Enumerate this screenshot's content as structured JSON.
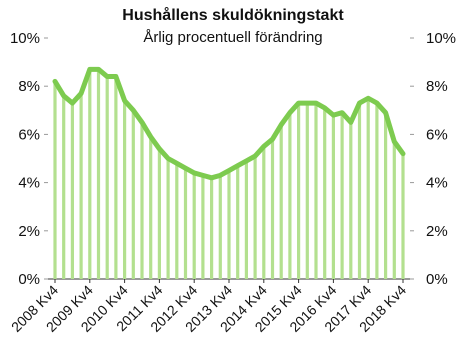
{
  "chart_data": {
    "type": "bar-line",
    "title": "Hushållens skuldökningstakt",
    "subtitle": "Årlig procentuell förändring",
    "categories": [
      "2008 Kv4",
      null,
      null,
      null,
      "2009 Kv4",
      null,
      null,
      null,
      "2010 Kv4",
      null,
      null,
      null,
      "2011 Kv4",
      null,
      null,
      null,
      "2012 Kv4",
      null,
      null,
      null,
      "2013 Kv4",
      null,
      null,
      null,
      "2014 Kv4",
      null,
      null,
      null,
      "2015 Kv4",
      null,
      null,
      null,
      "2016 Kv4",
      null,
      null,
      null,
      "2017 Kv4",
      null,
      null,
      null,
      "2018 Kv4"
    ],
    "series": [
      {
        "bar_color": "#b3e08f",
        "color": "#7dcb4f",
        "values": [
          8.2,
          7.6,
          7.3,
          7.7,
          8.7,
          8.7,
          8.4,
          8.4,
          7.4,
          7.0,
          6.5,
          5.9,
          5.4,
          5.0,
          4.8,
          4.6,
          4.4,
          4.3,
          4.2,
          4.3,
          4.5,
          4.7,
          4.9,
          5.1,
          5.5,
          5.8,
          6.4,
          6.9,
          7.3,
          7.3,
          7.3,
          7.1,
          6.8,
          6.9,
          6.5,
          7.3,
          7.5,
          7.3,
          6.9,
          5.7,
          5.2
        ]
      }
    ],
    "ylim": [
      0,
      10
    ],
    "yticks": [
      {
        "value": 0,
        "label": "0%"
      },
      {
        "value": 2,
        "label": "2%"
      },
      {
        "value": 4,
        "label": "4%"
      },
      {
        "value": 6,
        "label": "6%"
      },
      {
        "value": 8,
        "label": "8%"
      },
      {
        "value": 10,
        "label": "10%"
      }
    ],
    "y2lim": [
      0,
      10
    ],
    "y2ticks": [
      {
        "value": 0,
        "label": "0%"
      },
      {
        "value": 2,
        "label": "2%"
      },
      {
        "value": 4,
        "label": "4%"
      },
      {
        "value": 6,
        "label": "6%"
      },
      {
        "value": 8,
        "label": "8%"
      },
      {
        "value": 10,
        "label": "10%"
      }
    ]
  }
}
